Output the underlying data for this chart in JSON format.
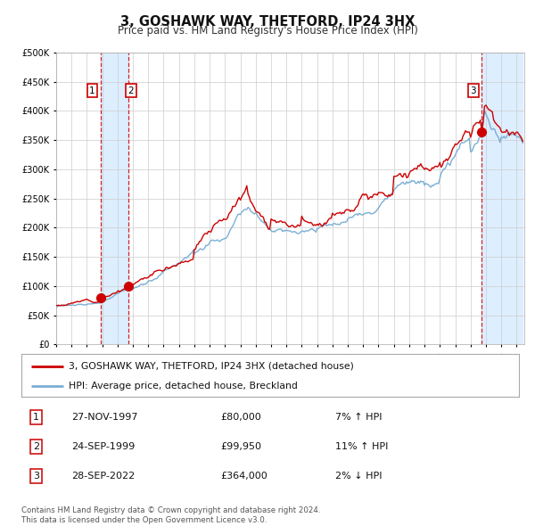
{
  "title": "3, GOSHAWK WAY, THETFORD, IP24 3HX",
  "subtitle": "Price paid vs. HM Land Registry's House Price Index (HPI)",
  "legend_line1": "3, GOSHAWK WAY, THETFORD, IP24 3HX (detached house)",
  "legend_line2": "HPI: Average price, detached house, Breckland",
  "transactions": [
    {
      "num": 1,
      "date": "27-NOV-1997",
      "price": 80000,
      "hpi_rel": "7% ↑ HPI",
      "x_year": 1997.9
    },
    {
      "num": 2,
      "date": "24-SEP-1999",
      "price": 99950,
      "hpi_rel": "11% ↑ HPI",
      "x_year": 1999.73
    },
    {
      "num": 3,
      "date": "28-SEP-2022",
      "price": 364000,
      "hpi_rel": "2% ↓ HPI",
      "x_year": 2022.73
    }
  ],
  "red_line_color": "#cc0000",
  "blue_line_color": "#7bafd4",
  "shade_color": "#ddeeff",
  "dashed_line_color": "#cc0000",
  "grid_color": "#cccccc",
  "bg_color": "#ffffff",
  "footnote": "Contains HM Land Registry data © Crown copyright and database right 2024.\nThis data is licensed under the Open Government Licence v3.0.",
  "xmin": 1995.0,
  "xmax": 2025.5,
  "ymin": 0,
  "ymax": 500000
}
